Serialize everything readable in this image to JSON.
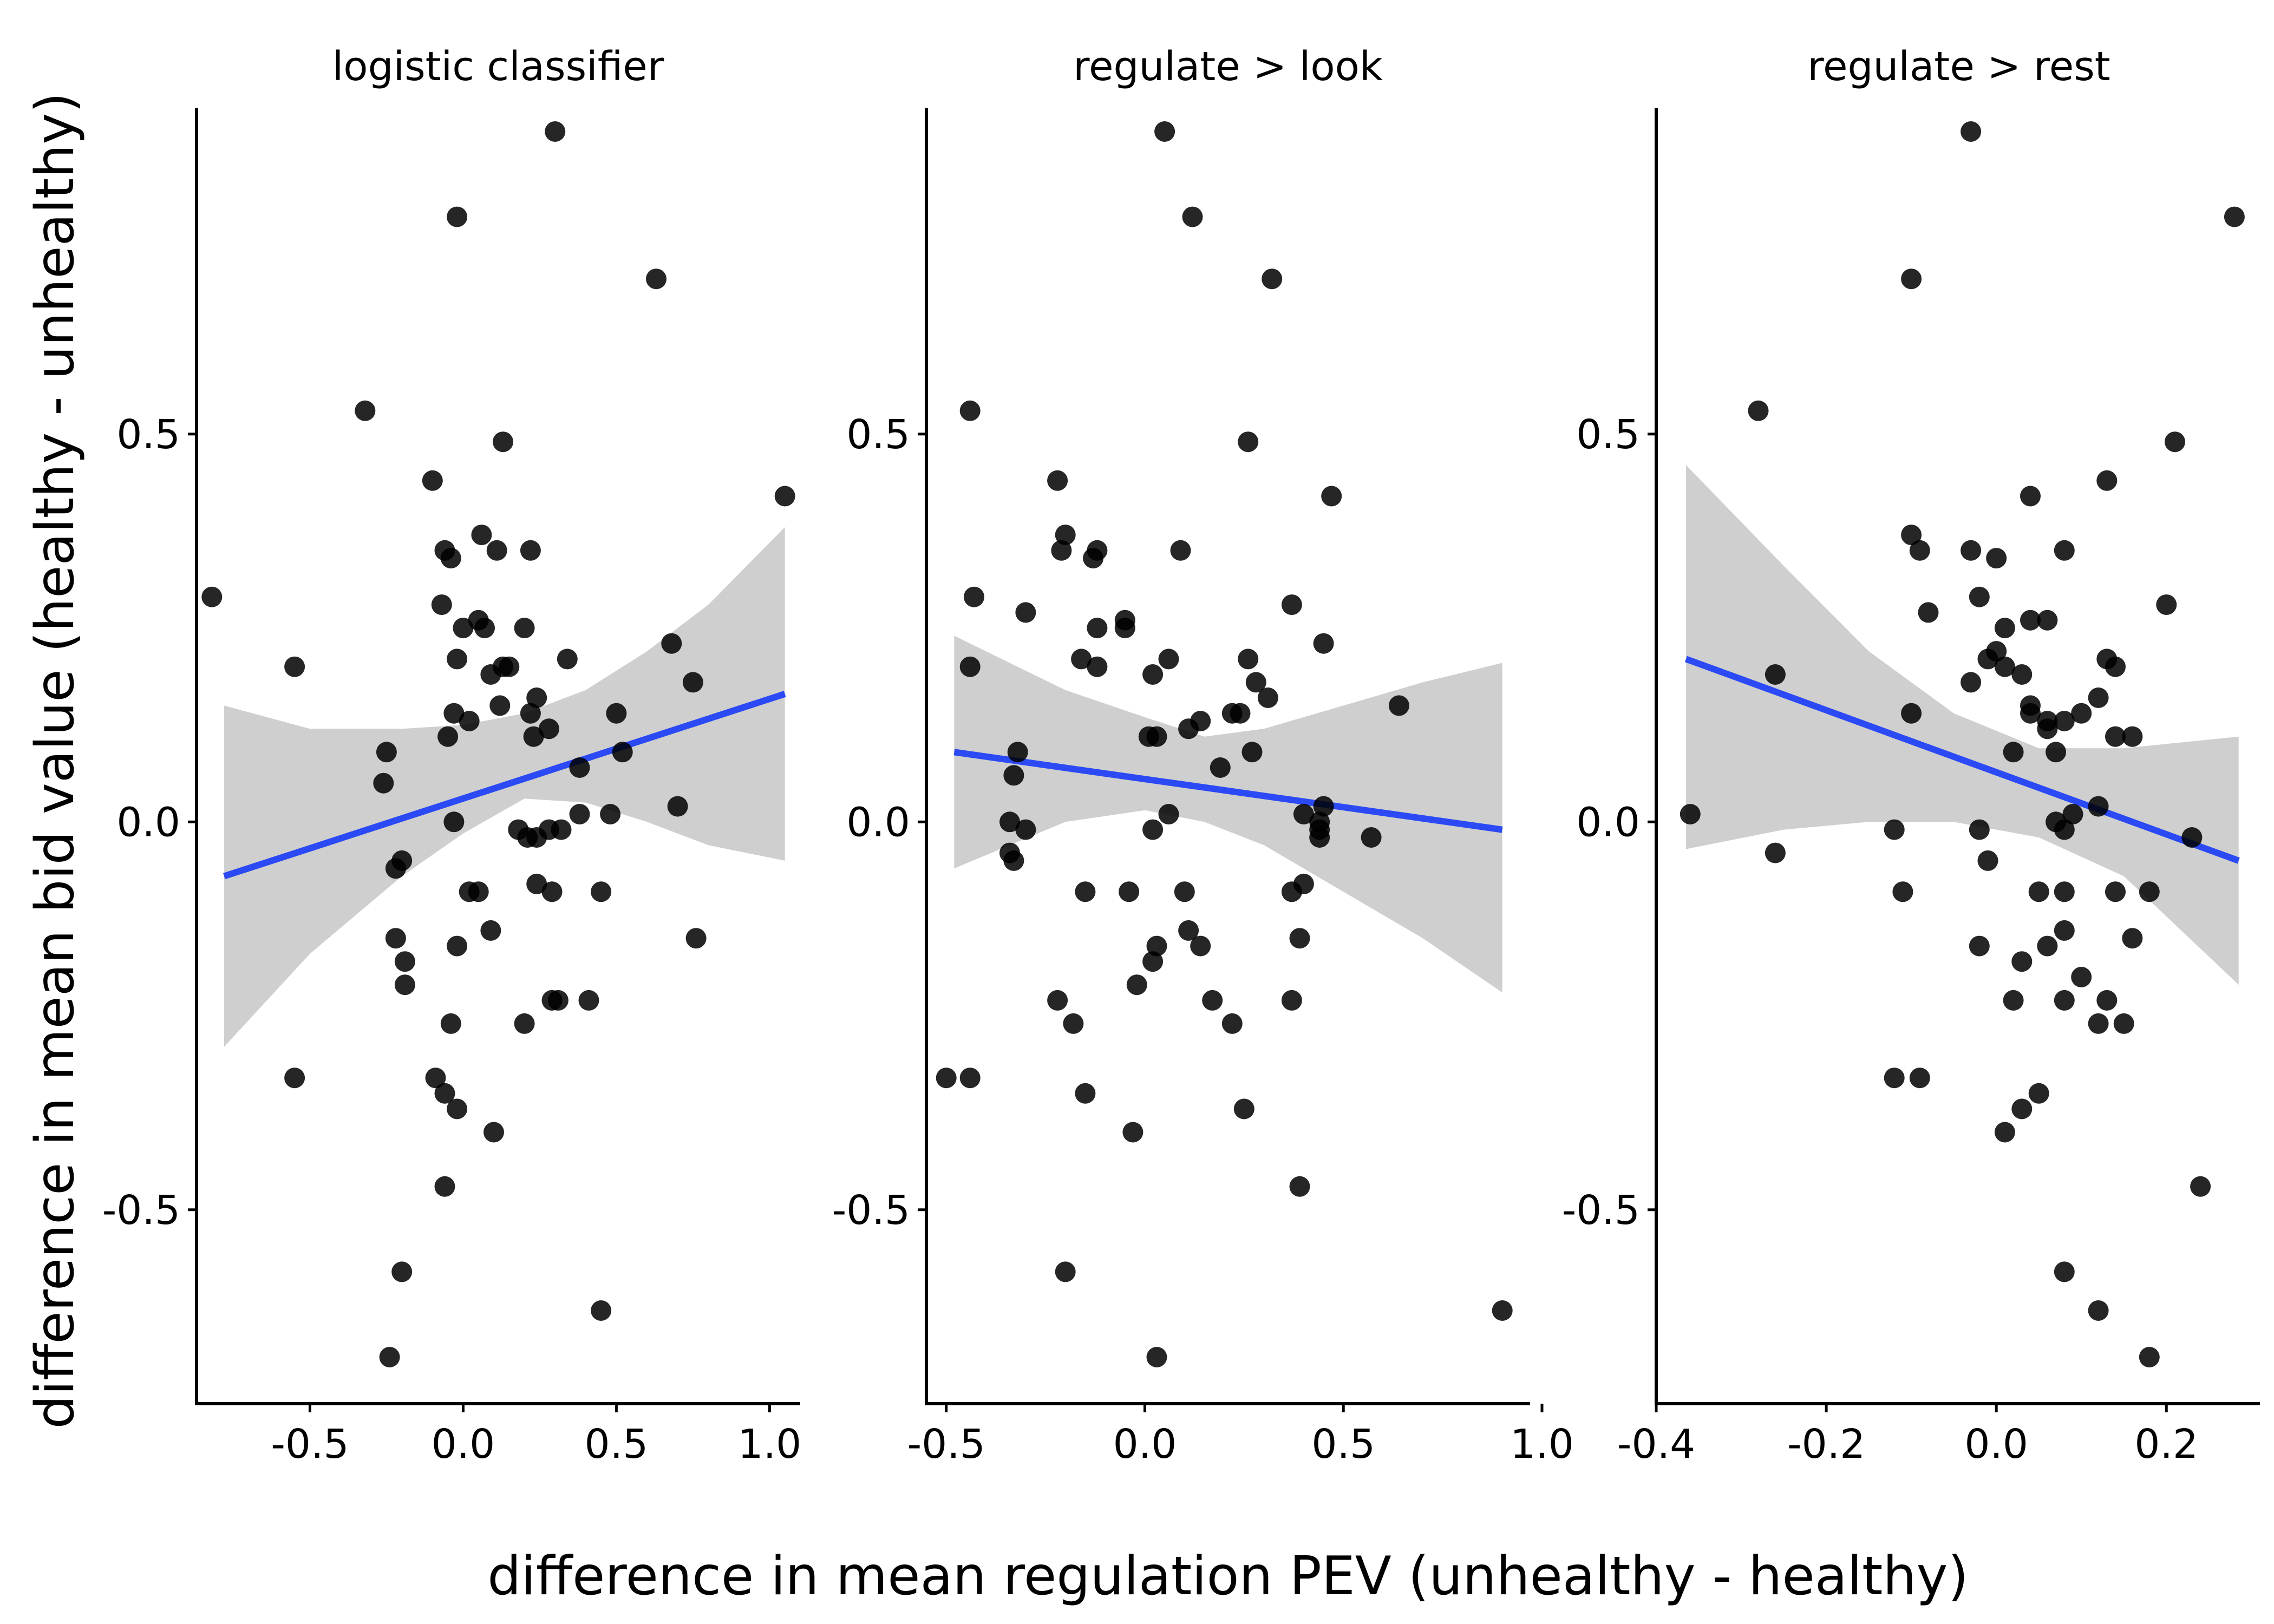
{
  "xlabel": "difference in mean regulation PEV (unhealthy - healthy)",
  "ylabel": "difference in mean bid value (healthy - unhealthy)",
  "colors": {
    "points": "#000000",
    "fit": "#2B4AF5",
    "band": "#CFCFCF",
    "axis": "#000000"
  },
  "chart_data": [
    {
      "type": "scatter",
      "title": "logistic classifier",
      "xlim": [
        -0.87,
        1.1
      ],
      "ylim": [
        -0.75,
        0.92
      ],
      "x_ticks": [
        -0.5,
        0.0,
        0.5,
        1.0
      ],
      "x_tick_labels": [
        "-0.5",
        "0.0",
        "0.5",
        "1.0"
      ],
      "y_ticks": [
        -0.5,
        0.0,
        0.5
      ],
      "y_tick_labels": [
        "-0.5",
        "0.0",
        "0.5"
      ],
      "fit": {
        "x0": -0.78,
        "y0": -0.07,
        "x1": 1.05,
        "y1": 0.165
      },
      "band": [
        [
          -0.78,
          0.15,
          -0.29
        ],
        [
          -0.5,
          0.12,
          -0.17
        ],
        [
          -0.2,
          0.12,
          -0.07
        ],
        [
          0.0,
          0.125,
          -0.015
        ],
        [
          0.2,
          0.14,
          0.03
        ],
        [
          0.4,
          0.17,
          0.025
        ],
        [
          0.6,
          0.22,
          0.0
        ],
        [
          0.8,
          0.28,
          -0.03
        ],
        [
          1.05,
          0.38,
          -0.05
        ]
      ],
      "points": [
        [
          0.3,
          0.89
        ],
        [
          -0.02,
          0.78
        ],
        [
          0.63,
          0.7
        ],
        [
          -0.32,
          0.53
        ],
        [
          0.13,
          0.49
        ],
        [
          -0.1,
          0.44
        ],
        [
          1.05,
          0.42
        ],
        [
          -0.82,
          0.29
        ],
        [
          0.06,
          0.37
        ],
        [
          -0.06,
          0.35
        ],
        [
          -0.04,
          0.34
        ],
        [
          0.11,
          0.35
        ],
        [
          0.22,
          0.35
        ],
        [
          -0.07,
          0.28
        ],
        [
          0.0,
          0.25
        ],
        [
          0.05,
          0.26
        ],
        [
          0.07,
          0.25
        ],
        [
          0.2,
          0.25
        ],
        [
          -0.55,
          0.2
        ],
        [
          -0.02,
          0.21
        ],
        [
          0.13,
          0.2
        ],
        [
          0.15,
          0.2
        ],
        [
          0.09,
          0.19
        ],
        [
          0.34,
          0.21
        ],
        [
          0.68,
          0.23
        ],
        [
          0.75,
          0.18
        ],
        [
          0.24,
          0.16
        ],
        [
          -0.03,
          0.14
        ],
        [
          0.12,
          0.15
        ],
        [
          0.22,
          0.14
        ],
        [
          0.5,
          0.14
        ],
        [
          0.02,
          0.13
        ],
        [
          -0.05,
          0.11
        ],
        [
          0.28,
          0.12
        ],
        [
          0.23,
          0.11
        ],
        [
          -0.25,
          0.09
        ],
        [
          0.52,
          0.09
        ],
        [
          0.38,
          0.07
        ],
        [
          -0.26,
          0.05
        ],
        [
          -0.03,
          0.0
        ],
        [
          0.18,
          -0.01
        ],
        [
          0.21,
          -0.02
        ],
        [
          0.24,
          -0.02
        ],
        [
          0.28,
          -0.01
        ],
        [
          0.32,
          -0.01
        ],
        [
          0.38,
          0.01
        ],
        [
          0.48,
          0.01
        ],
        [
          0.7,
          0.02
        ],
        [
          -0.2,
          -0.05
        ],
        [
          -0.22,
          -0.06
        ],
        [
          0.02,
          -0.09
        ],
        [
          0.05,
          -0.09
        ],
        [
          0.24,
          -0.08
        ],
        [
          0.29,
          -0.09
        ],
        [
          0.45,
          -0.09
        ],
        [
          0.09,
          -0.14
        ],
        [
          -0.22,
          -0.15
        ],
        [
          -0.02,
          -0.16
        ],
        [
          0.76,
          -0.15
        ],
        [
          -0.19,
          -0.18
        ],
        [
          -0.19,
          -0.21
        ],
        [
          0.29,
          -0.23
        ],
        [
          0.31,
          -0.23
        ],
        [
          0.41,
          -0.23
        ],
        [
          -0.04,
          -0.26
        ],
        [
          0.2,
          -0.26
        ],
        [
          -0.55,
          -0.33
        ],
        [
          -0.09,
          -0.33
        ],
        [
          -0.06,
          -0.35
        ],
        [
          -0.02,
          -0.37
        ],
        [
          0.1,
          -0.4
        ],
        [
          -0.06,
          -0.47
        ],
        [
          -0.2,
          -0.58
        ],
        [
          0.45,
          -0.63
        ],
        [
          -0.24,
          -0.69
        ]
      ]
    },
    {
      "type": "scatter",
      "title": "regulate > look",
      "xlim": [
        -0.55,
        0.97
      ],
      "ylim": [
        -0.75,
        0.92
      ],
      "x_ticks": [
        -0.5,
        0.0,
        0.5,
        1.0
      ],
      "x_tick_labels": [
        "-0.5",
        "0.0",
        "0.5",
        "1.0"
      ],
      "y_ticks": [
        -0.5,
        0.0,
        0.5
      ],
      "y_tick_labels": [
        "-0.5",
        "0.0",
        "0.5"
      ],
      "fit": {
        "x0": -0.48,
        "y0": 0.09,
        "x1": 0.9,
        "y1": -0.01
      },
      "band": [
        [
          -0.48,
          0.24,
          -0.06
        ],
        [
          -0.2,
          0.17,
          0.0
        ],
        [
          0.0,
          0.135,
          0.015
        ],
        [
          0.15,
          0.11,
          0.0
        ],
        [
          0.3,
          0.12,
          -0.03
        ],
        [
          0.5,
          0.15,
          -0.09
        ],
        [
          0.7,
          0.18,
          -0.15
        ],
        [
          0.9,
          0.205,
          -0.22
        ]
      ],
      "points": [
        [
          0.05,
          0.89
        ],
        [
          0.12,
          0.78
        ],
        [
          0.32,
          0.7
        ],
        [
          -0.44,
          0.53
        ],
        [
          0.26,
          0.49
        ],
        [
          -0.22,
          0.44
        ],
        [
          0.47,
          0.42
        ],
        [
          -0.2,
          0.37
        ],
        [
          -0.21,
          0.35
        ],
        [
          -0.13,
          0.34
        ],
        [
          -0.12,
          0.35
        ],
        [
          0.09,
          0.35
        ],
        [
          -0.43,
          0.29
        ],
        [
          0.37,
          0.28
        ],
        [
          -0.3,
          0.27
        ],
        [
          -0.12,
          0.25
        ],
        [
          -0.05,
          0.26
        ],
        [
          -0.05,
          0.25
        ],
        [
          0.45,
          0.23
        ],
        [
          -0.44,
          0.2
        ],
        [
          -0.16,
          0.21
        ],
        [
          -0.12,
          0.2
        ],
        [
          0.06,
          0.21
        ],
        [
          0.26,
          0.21
        ],
        [
          0.02,
          0.19
        ],
        [
          0.28,
          0.18
        ],
        [
          0.31,
          0.16
        ],
        [
          0.64,
          0.15
        ],
        [
          0.22,
          0.14
        ],
        [
          0.24,
          0.14
        ],
        [
          0.14,
          0.13
        ],
        [
          0.11,
          0.12
        ],
        [
          0.01,
          0.11
        ],
        [
          0.03,
          0.11
        ],
        [
          0.27,
          0.09
        ],
        [
          -0.32,
          0.09
        ],
        [
          0.19,
          0.07
        ],
        [
          -0.33,
          0.06
        ],
        [
          -0.34,
          0.0
        ],
        [
          -0.3,
          -0.01
        ],
        [
          0.02,
          -0.01
        ],
        [
          0.06,
          0.01
        ],
        [
          0.4,
          0.01
        ],
        [
          0.44,
          0.0
        ],
        [
          0.45,
          0.02
        ],
        [
          0.44,
          -0.01
        ],
        [
          0.44,
          -0.02
        ],
        [
          0.57,
          -0.02
        ],
        [
          -0.34,
          -0.04
        ],
        [
          -0.33,
          -0.05
        ],
        [
          -0.15,
          -0.09
        ],
        [
          -0.04,
          -0.09
        ],
        [
          0.1,
          -0.09
        ],
        [
          0.37,
          -0.09
        ],
        [
          0.4,
          -0.08
        ],
        [
          0.11,
          -0.14
        ],
        [
          0.14,
          -0.16
        ],
        [
          0.39,
          -0.15
        ],
        [
          0.03,
          -0.16
        ],
        [
          0.02,
          -0.18
        ],
        [
          -0.02,
          -0.21
        ],
        [
          -0.22,
          -0.23
        ],
        [
          0.17,
          -0.23
        ],
        [
          0.37,
          -0.23
        ],
        [
          -0.18,
          -0.26
        ],
        [
          0.22,
          -0.26
        ],
        [
          -0.5,
          -0.33
        ],
        [
          -0.44,
          -0.33
        ],
        [
          -0.15,
          -0.35
        ],
        [
          0.25,
          -0.37
        ],
        [
          -0.03,
          -0.4
        ],
        [
          0.39,
          -0.47
        ],
        [
          -0.2,
          -0.58
        ],
        [
          0.9,
          -0.63
        ],
        [
          0.03,
          -0.69
        ]
      ]
    },
    {
      "type": "scatter",
      "title": "regulate > rest",
      "xlim": [
        -0.4,
        0.31
      ],
      "ylim": [
        -0.75,
        0.92
      ],
      "x_ticks": [
        -0.4,
        -0.2,
        0.0,
        0.2
      ],
      "x_tick_labels": [
        "-0.4",
        "-0.2",
        "0.0",
        "0.2"
      ],
      "y_ticks": [
        -0.5,
        0.0,
        0.5
      ],
      "y_tick_labels": [
        "-0.5",
        "0.0",
        "0.5"
      ],
      "fit": {
        "x0": -0.365,
        "y0": 0.21,
        "x1": 0.285,
        "y1": -0.05
      },
      "band": [
        [
          -0.365,
          0.46,
          -0.035
        ],
        [
          -0.25,
          0.33,
          -0.01
        ],
        [
          -0.15,
          0.22,
          0.0
        ],
        [
          -0.05,
          0.14,
          0.0
        ],
        [
          0.05,
          0.095,
          -0.02
        ],
        [
          0.15,
          0.095,
          -0.07
        ],
        [
          0.285,
          0.11,
          -0.21
        ]
      ],
      "points": [
        [
          -0.03,
          0.89
        ],
        [
          0.28,
          0.78
        ],
        [
          -0.1,
          0.7
        ],
        [
          -0.28,
          0.53
        ],
        [
          0.21,
          0.49
        ],
        [
          0.13,
          0.44
        ],
        [
          0.04,
          0.42
        ],
        [
          -0.1,
          0.37
        ],
        [
          -0.09,
          0.35
        ],
        [
          -0.03,
          0.35
        ],
        [
          0.0,
          0.34
        ],
        [
          0.08,
          0.35
        ],
        [
          -0.02,
          0.29
        ],
        [
          0.2,
          0.28
        ],
        [
          -0.08,
          0.27
        ],
        [
          0.04,
          0.26
        ],
        [
          0.06,
          0.26
        ],
        [
          0.01,
          0.25
        ],
        [
          0.0,
          0.22
        ],
        [
          -0.01,
          0.21
        ],
        [
          0.01,
          0.2
        ],
        [
          0.03,
          0.19
        ],
        [
          0.13,
          0.21
        ],
        [
          0.14,
          0.2
        ],
        [
          -0.26,
          0.19
        ],
        [
          -0.03,
          0.18
        ],
        [
          0.12,
          0.16
        ],
        [
          0.04,
          0.15
        ],
        [
          0.04,
          0.14
        ],
        [
          0.06,
          0.13
        ],
        [
          0.08,
          0.13
        ],
        [
          0.1,
          0.14
        ],
        [
          -0.1,
          0.14
        ],
        [
          0.06,
          0.12
        ],
        [
          0.14,
          0.11
        ],
        [
          0.16,
          0.11
        ],
        [
          0.02,
          0.09
        ],
        [
          0.07,
          0.09
        ],
        [
          -0.36,
          0.01
        ],
        [
          -0.12,
          -0.01
        ],
        [
          -0.02,
          -0.01
        ],
        [
          0.07,
          0.0
        ],
        [
          0.08,
          -0.01
        ],
        [
          0.09,
          0.01
        ],
        [
          0.12,
          0.02
        ],
        [
          0.23,
          -0.02
        ],
        [
          -0.26,
          -0.04
        ],
        [
          -0.01,
          -0.05
        ],
        [
          0.05,
          -0.09
        ],
        [
          0.08,
          -0.09
        ],
        [
          0.14,
          -0.09
        ],
        [
          0.18,
          -0.09
        ],
        [
          -0.11,
          -0.09
        ],
        [
          0.08,
          -0.14
        ],
        [
          0.06,
          -0.16
        ],
        [
          -0.02,
          -0.16
        ],
        [
          0.16,
          -0.15
        ],
        [
          0.03,
          -0.18
        ],
        [
          0.1,
          -0.2
        ],
        [
          0.02,
          -0.23
        ],
        [
          0.08,
          -0.23
        ],
        [
          0.13,
          -0.23
        ],
        [
          0.12,
          -0.26
        ],
        [
          0.15,
          -0.26
        ],
        [
          -0.12,
          -0.33
        ],
        [
          -0.09,
          -0.33
        ],
        [
          0.05,
          -0.35
        ],
        [
          0.03,
          -0.37
        ],
        [
          0.01,
          -0.4
        ],
        [
          0.24,
          -0.47
        ],
        [
          0.08,
          -0.58
        ],
        [
          0.12,
          -0.63
        ],
        [
          0.18,
          -0.69
        ]
      ]
    }
  ]
}
